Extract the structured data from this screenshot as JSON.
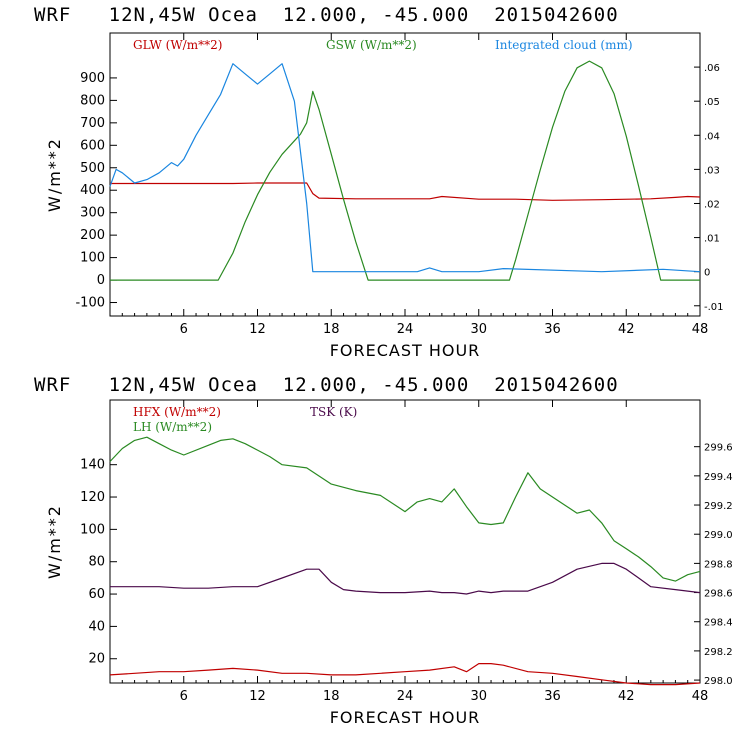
{
  "colors": {
    "red": "#c00000",
    "green": "#2a8a22",
    "blue": "#1a86e0",
    "purple": "#4a0a4a",
    "axis": "#000000"
  },
  "chart_data": [
    {
      "type": "line",
      "title": "WRF   12N,45W Ocea  12.000, -45.000  2015042600",
      "xlabel": "FORECAST HOUR",
      "ylabel": "W/m**2",
      "xlim": [
        0,
        48
      ],
      "ylim": [
        -160,
        1100
      ],
      "xticks": [
        "6",
        "12",
        "18",
        "24",
        "30",
        "36",
        "42",
        "48"
      ],
      "yticks": [
        "-100",
        "0",
        "100",
        "200",
        "300",
        "400",
        "500",
        "600",
        "700",
        "800",
        "900"
      ],
      "y2lim": [
        -0.013,
        0.07
      ],
      "y2ticks": [
        "-.01",
        "0",
        ".01",
        ".02",
        ".03",
        ".04",
        ".05",
        ".06"
      ],
      "series": [
        {
          "name": "GLW (W/m**2)",
          "axis": "left",
          "color": "red",
          "x": [
            0,
            2,
            4,
            6,
            8,
            10,
            12,
            14,
            16,
            16.5,
            17,
            20,
            24,
            26,
            27,
            30,
            33,
            36,
            40,
            44,
            46,
            47,
            48
          ],
          "y": [
            430,
            430,
            430,
            430,
            430,
            430,
            432,
            432,
            432,
            385,
            365,
            362,
            362,
            362,
            372,
            360,
            360,
            355,
            358,
            362,
            368,
            372,
            370
          ]
        },
        {
          "name": "GSW (W/m**2)",
          "axis": "left",
          "color": "green",
          "x": [
            0,
            6,
            8.8,
            10,
            11,
            12,
            13,
            14,
            15,
            15.5,
            16,
            16.5,
            17,
            18,
            19,
            20,
            21,
            24,
            32.5,
            33,
            34,
            35,
            36,
            37,
            38,
            39,
            40,
            41,
            42,
            43,
            44,
            44.8,
            48
          ],
          "y": [
            0,
            0,
            0,
            120,
            260,
            380,
            480,
            560,
            620,
            650,
            700,
            840,
            760,
            560,
            360,
            170,
            0,
            0,
            0,
            90,
            290,
            490,
            680,
            840,
            945,
            975,
            945,
            830,
            640,
            420,
            190,
            0,
            0
          ]
        },
        {
          "name": "Integrated cloud (mm)",
          "axis": "right",
          "color": "blue",
          "x": [
            0,
            0.5,
            1,
            2,
            3,
            4,
            5,
            5.5,
            6,
            7,
            8,
            9,
            10,
            11,
            12,
            13,
            14,
            15,
            16,
            16.5,
            17,
            25,
            26,
            27,
            30,
            32,
            40,
            45,
            48
          ],
          "y": [
            0.025,
            0.03,
            0.029,
            0.026,
            0.027,
            0.029,
            0.032,
            0.031,
            0.033,
            0.04,
            0.046,
            0.052,
            0.061,
            0.058,
            0.055,
            0.058,
            0.061,
            0.05,
            0.02,
            0.0,
            0.0,
            0.0,
            0.0011,
            0.0,
            0.0,
            0.0009,
            0.0,
            0.0007,
            0.0
          ]
        }
      ]
    },
    {
      "type": "line",
      "title": "WRF   12N,45W Ocea  12.000, -45.000  2015042600",
      "xlabel": "FORECAST HOUR",
      "ylabel": "W/m**2",
      "xlim": [
        0,
        48
      ],
      "ylim": [
        5,
        180
      ],
      "xticks": [
        "6",
        "12",
        "18",
        "24",
        "30",
        "36",
        "42",
        "48"
      ],
      "yticks": [
        "20",
        "40",
        "60",
        "80",
        "100",
        "120",
        "140"
      ],
      "y2lim": [
        297.98,
        299.92
      ],
      "y2ticks": [
        "298.0",
        "298.2",
        "298.4",
        "298.6",
        "298.8",
        "299.0",
        "299.2",
        "299.4",
        "299.6"
      ],
      "series": [
        {
          "name": "HFX (W/m**2)",
          "axis": "left",
          "color": "red",
          "x": [
            0,
            2,
            4,
            6,
            8,
            10,
            12,
            14,
            16,
            18,
            20,
            22,
            24,
            26,
            28,
            29,
            30,
            31,
            32,
            34,
            36,
            38,
            40,
            42,
            44,
            46,
            48
          ],
          "y": [
            10,
            11,
            12,
            12,
            13,
            14,
            13,
            11,
            11,
            10,
            10,
            11,
            12,
            13,
            15,
            12,
            17,
            17,
            16,
            12,
            11,
            9,
            7,
            5,
            4,
            4,
            5
          ]
        },
        {
          "name": "LH  (W/m**2)",
          "axis": "left",
          "color": "green",
          "x": [
            0,
            1,
            2,
            3,
            4,
            5,
            6,
            8,
            9,
            10,
            11,
            12,
            13,
            14,
            16,
            17,
            18,
            20,
            22,
            24,
            25,
            26,
            27,
            28,
            29,
            30,
            31,
            32,
            33,
            34,
            35,
            36,
            37,
            38,
            39,
            40,
            41,
            42,
            43,
            44,
            45,
            46,
            47,
            48
          ],
          "y": [
            142,
            150,
            155,
            157,
            153,
            149,
            146,
            152,
            155,
            156,
            153,
            149,
            145,
            140,
            138,
            133,
            128,
            124,
            121,
            111,
            117,
            119,
            117,
            125,
            114,
            104,
            103,
            104,
            120,
            135,
            125,
            120,
            115,
            110,
            112,
            104,
            93,
            88,
            83,
            77,
            70,
            68,
            72,
            74
          ]
        },
        {
          "name": "TSK (K)",
          "axis": "right",
          "color": "purple",
          "x": [
            0,
            2,
            4,
            6,
            8,
            10,
            12,
            14,
            16,
            17,
            18,
            19,
            20,
            22,
            24,
            26,
            27,
            28,
            29,
            30,
            31,
            32,
            34,
            36,
            38,
            40,
            41,
            42,
            44,
            46,
            48
          ],
          "y": [
            298.64,
            298.64,
            298.64,
            298.63,
            298.63,
            298.64,
            298.64,
            298.7,
            298.76,
            298.76,
            298.67,
            298.62,
            298.61,
            298.6,
            298.6,
            298.61,
            298.6,
            298.6,
            298.59,
            298.61,
            298.6,
            298.61,
            298.61,
            298.67,
            298.76,
            298.8,
            298.8,
            298.76,
            298.64,
            298.62,
            298.6
          ]
        }
      ]
    }
  ]
}
